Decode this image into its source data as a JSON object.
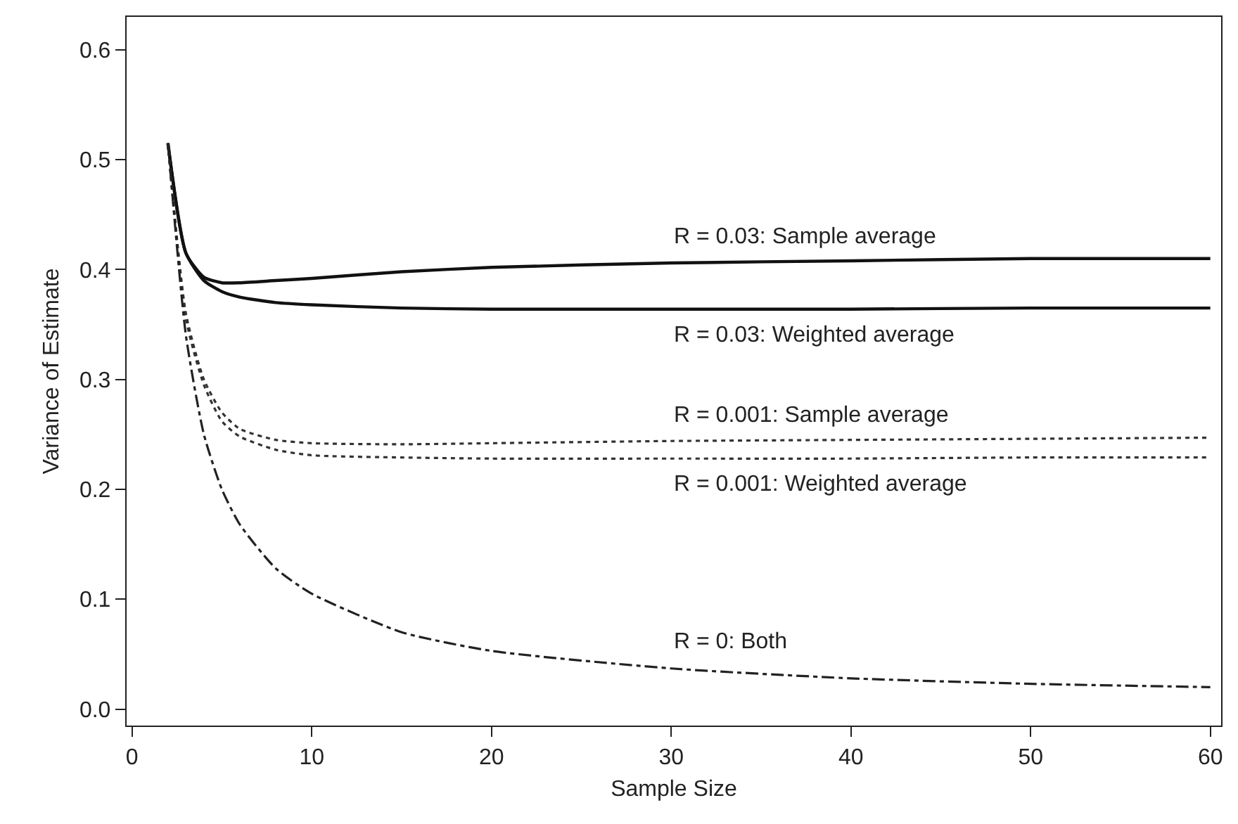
{
  "chart_data": {
    "type": "line",
    "xlabel": "Sample Size",
    "ylabel": "Variance of Estimate",
    "xlim": [
      -0.3,
      60.6
    ],
    "xticks": [
      0,
      10,
      20,
      30,
      40,
      50,
      60
    ],
    "ylim": [
      -0.015,
      0.63
    ],
    "yticks": [
      {
        "value": 0,
        "label": "0.0"
      },
      0.1,
      0.2,
      0.3,
      0.4,
      0.5,
      0.6
    ],
    "grid": false,
    "legend": false,
    "marker": "none",
    "series": [
      {
        "name": "R = 0.03: Sample average",
        "color": "#111111",
        "line_style": "solid",
        "x": [
          2,
          3,
          4,
          5,
          6,
          8,
          10,
          15,
          20,
          30,
          40,
          50,
          60
        ],
        "values": [
          0.515,
          0.415,
          0.393,
          0.388,
          0.388,
          0.39,
          0.392,
          0.398,
          0.402,
          0.406,
          0.408,
          0.41,
          0.41
        ]
      },
      {
        "name": "R = 0.03: Weighted average",
        "color": "#111111",
        "line_style": "solid",
        "x": [
          2,
          3,
          4,
          5,
          6,
          8,
          10,
          15,
          20,
          30,
          40,
          50,
          60
        ],
        "values": [
          0.515,
          0.415,
          0.39,
          0.38,
          0.375,
          0.37,
          0.368,
          0.365,
          0.364,
          0.364,
          0.364,
          0.365,
          0.365
        ]
      },
      {
        "name": "R = 0.001: Sample average",
        "color": "#333333",
        "line_style": "dotted",
        "x": [
          2,
          3,
          4,
          5,
          6,
          8,
          10,
          15,
          20,
          30,
          40,
          50,
          60
        ],
        "values": [
          0.515,
          0.36,
          0.3,
          0.27,
          0.255,
          0.245,
          0.242,
          0.241,
          0.242,
          0.244,
          0.245,
          0.246,
          0.247
        ]
      },
      {
        "name": "R = 0.001: Weighted average",
        "color": "#333333",
        "line_style": "dotted",
        "x": [
          2,
          3,
          4,
          5,
          6,
          8,
          10,
          15,
          20,
          30,
          40,
          50,
          60
        ],
        "values": [
          0.515,
          0.355,
          0.295,
          0.262,
          0.248,
          0.236,
          0.231,
          0.229,
          0.228,
          0.228,
          0.228,
          0.229,
          0.229
        ]
      },
      {
        "name": "R = 0: Both",
        "color": "#222222",
        "line_style": "dashdot",
        "x": [
          2,
          3,
          4,
          5,
          6,
          8,
          10,
          15,
          20,
          30,
          40,
          50,
          60
        ],
        "values": [
          0.515,
          0.34,
          0.25,
          0.2,
          0.168,
          0.128,
          0.105,
          0.07,
          0.053,
          0.037,
          0.028,
          0.023,
          0.02
        ]
      }
    ]
  }
}
